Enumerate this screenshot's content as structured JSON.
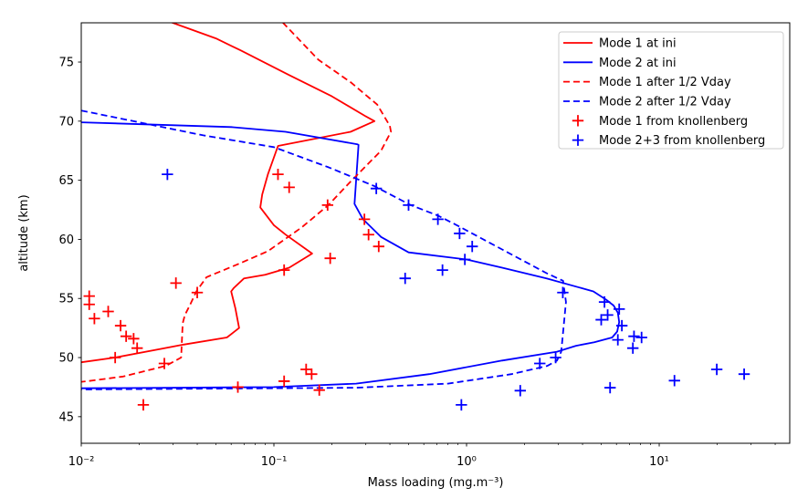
{
  "figure": {
    "background": "#ffffff",
    "border_color": "#000000"
  },
  "chart_data": {
    "type": "line",
    "title": "",
    "xlabel": "Mass loading (mg.m⁻³)",
    "ylabel": "altitude (km)",
    "xscale": "log",
    "yscale": "linear",
    "xlim": [
      0.01,
      47.6
    ],
    "ylim": [
      42.75,
      78.32
    ],
    "grid": false,
    "legend": {
      "position": "upper right",
      "border_color": "#cccccc",
      "background": "#ffffff"
    },
    "x_major_ticks": [
      {
        "value": 0.01,
        "label": "10⁻²"
      },
      {
        "value": 0.1,
        "label": "10⁻¹"
      },
      {
        "value": 1,
        "label": "10⁰"
      },
      {
        "value": 10,
        "label": "10¹"
      }
    ],
    "y_ticks": [
      {
        "value": 45,
        "label": "45"
      },
      {
        "value": 50,
        "label": "50"
      },
      {
        "value": 55,
        "label": "55"
      },
      {
        "value": 60,
        "label": "60"
      },
      {
        "value": 65,
        "label": "65"
      },
      {
        "value": 70,
        "label": "70"
      },
      {
        "value": 75,
        "label": "75"
      }
    ],
    "series": [
      {
        "name": "Mode 1 at ini",
        "color": "#ff0000",
        "kind": "line",
        "line": "solid",
        "points": [
          [
            0.0295,
            78.35
          ],
          [
            0.05,
            77.0
          ],
          [
            0.067,
            76.0
          ],
          [
            0.12,
            73.9
          ],
          [
            0.2,
            72.1
          ],
          [
            0.3,
            70.4
          ],
          [
            0.333,
            70.0
          ],
          [
            0.25,
            69.1
          ],
          [
            0.105,
            67.9
          ],
          [
            0.093,
            65.5
          ],
          [
            0.087,
            63.8
          ],
          [
            0.085,
            62.7
          ],
          [
            0.1,
            61.2
          ],
          [
            0.115,
            60.4
          ],
          [
            0.158,
            58.8
          ],
          [
            0.12,
            57.6
          ],
          [
            0.09,
            57.0
          ],
          [
            0.07,
            56.7
          ],
          [
            0.062,
            55.9
          ],
          [
            0.06,
            55.6
          ],
          [
            0.063,
            54.2
          ],
          [
            0.066,
            52.5
          ],
          [
            0.057,
            51.7
          ],
          [
            0.034,
            51.1
          ],
          [
            0.015,
            50.0
          ],
          [
            0.01,
            49.6
          ]
        ]
      },
      {
        "name": "Mode 2 at ini",
        "color": "#0000ff",
        "kind": "line",
        "line": "solid",
        "points": [
          [
            0.01,
            69.9
          ],
          [
            0.06,
            69.5
          ],
          [
            0.115,
            69.1
          ],
          [
            0.27,
            68.05
          ],
          [
            0.275,
            68.0
          ],
          [
            0.262,
            63.0
          ],
          [
            0.29,
            61.7
          ],
          [
            0.36,
            60.2
          ],
          [
            0.5,
            58.9
          ],
          [
            1.0,
            58.3
          ],
          [
            1.53,
            57.6
          ],
          [
            2.6,
            56.7
          ],
          [
            4.55,
            55.6
          ],
          [
            5.3,
            54.9
          ],
          [
            5.8,
            54.4
          ],
          [
            6.1,
            53.8
          ],
          [
            6.2,
            53.0
          ],
          [
            6.05,
            52.2
          ],
          [
            5.7,
            51.7
          ],
          [
            4.6,
            51.3
          ],
          [
            3.7,
            51.0
          ],
          [
            2.95,
            50.5
          ],
          [
            1.53,
            49.75
          ],
          [
            0.64,
            48.6
          ],
          [
            0.267,
            47.8
          ],
          [
            0.1,
            47.5
          ],
          [
            0.01,
            47.4
          ]
        ]
      },
      {
        "name": "Mode 1 after 1/2 Vday",
        "color": "#ff0000",
        "kind": "line",
        "line": "dashed",
        "points": [
          [
            0.111,
            78.35
          ],
          [
            0.17,
            75.2
          ],
          [
            0.25,
            73.3
          ],
          [
            0.344,
            71.4
          ],
          [
            0.4,
            69.6
          ],
          [
            0.405,
            69.1
          ],
          [
            0.36,
            67.5
          ],
          [
            0.247,
            64.8
          ],
          [
            0.192,
            62.9
          ],
          [
            0.139,
            61.0
          ],
          [
            0.093,
            59.0
          ],
          [
            0.065,
            57.9
          ],
          [
            0.0447,
            56.8
          ],
          [
            0.0396,
            55.6
          ],
          [
            0.0368,
            54.5
          ],
          [
            0.0345,
            53.6
          ],
          [
            0.0336,
            52.9
          ],
          [
            0.033,
            50.0
          ],
          [
            0.0275,
            49.3
          ],
          [
            0.0165,
            48.4
          ],
          [
            0.0107,
            48.0
          ],
          [
            0.01,
            47.95
          ]
        ]
      },
      {
        "name": "Mode 2 after 1/2 Vday",
        "color": "#0000ff",
        "kind": "line",
        "line": "dashed",
        "points": [
          [
            0.01,
            70.9
          ],
          [
            0.043,
            68.8
          ],
          [
            0.1,
            67.8
          ],
          [
            0.192,
            66.1
          ],
          [
            0.333,
            64.5
          ],
          [
            0.512,
            62.9
          ],
          [
            0.713,
            62.0
          ],
          [
            0.89,
            61.2
          ],
          [
            1.53,
            59.15
          ],
          [
            2.63,
            57.1
          ],
          [
            3.17,
            56.5
          ],
          [
            3.28,
            54.7
          ],
          [
            3.17,
            52.1
          ],
          [
            3.1,
            50.5
          ],
          [
            2.95,
            49.75
          ],
          [
            2.63,
            49.3
          ],
          [
            1.71,
            48.6
          ],
          [
            0.8,
            47.8
          ],
          [
            0.267,
            47.45
          ],
          [
            0.01,
            47.3
          ]
        ]
      },
      {
        "name": "Mode 1 from knollenberg",
        "color": "#ff0000",
        "kind": "scatter",
        "marker": "+",
        "points": [
          [
            0.105,
            65.5
          ],
          [
            0.12,
            64.4
          ],
          [
            0.19,
            62.9
          ],
          [
            0.295,
            61.7
          ],
          [
            0.31,
            60.4
          ],
          [
            0.35,
            59.4
          ],
          [
            0.196,
            58.4
          ],
          [
            0.113,
            57.4
          ],
          [
            0.031,
            56.3
          ],
          [
            0.04,
            55.5
          ],
          [
            0.011,
            55.2
          ],
          [
            0.011,
            54.5
          ],
          [
            0.0138,
            53.9
          ],
          [
            0.0117,
            53.3
          ],
          [
            0.016,
            52.7
          ],
          [
            0.0171,
            51.8
          ],
          [
            0.0187,
            51.6
          ],
          [
            0.0195,
            50.8
          ],
          [
            0.015,
            50.0
          ],
          [
            0.027,
            49.5
          ],
          [
            0.147,
            49.0
          ],
          [
            0.157,
            48.6
          ],
          [
            0.113,
            48.0
          ],
          [
            0.065,
            47.5
          ],
          [
            0.172,
            47.25
          ],
          [
            0.021,
            46.0
          ]
        ]
      },
      {
        "name": "Mode 2+3 from knollenberg",
        "color": "#0000ff",
        "kind": "scatter",
        "marker": "+",
        "points": [
          [
            0.028,
            65.5
          ],
          [
            0.34,
            64.3
          ],
          [
            0.5,
            62.9
          ],
          [
            0.71,
            61.7
          ],
          [
            0.92,
            60.5
          ],
          [
            1.07,
            59.4
          ],
          [
            0.98,
            58.3
          ],
          [
            0.75,
            57.4
          ],
          [
            0.48,
            56.7
          ],
          [
            3.16,
            55.5
          ],
          [
            5.2,
            54.7
          ],
          [
            6.2,
            54.1
          ],
          [
            5.4,
            53.6
          ],
          [
            5.0,
            53.2
          ],
          [
            6.4,
            52.7
          ],
          [
            7.4,
            51.8
          ],
          [
            8.1,
            51.7
          ],
          [
            6.1,
            51.5
          ],
          [
            7.3,
            50.8
          ],
          [
            2.9,
            50.0
          ],
          [
            2.4,
            49.5
          ],
          [
            1.9,
            47.2
          ],
          [
            5.56,
            47.45
          ],
          [
            0.94,
            46.0
          ],
          [
            12.0,
            48.05
          ],
          [
            19.9,
            49.0
          ],
          [
            27.6,
            48.6
          ]
        ]
      }
    ]
  }
}
